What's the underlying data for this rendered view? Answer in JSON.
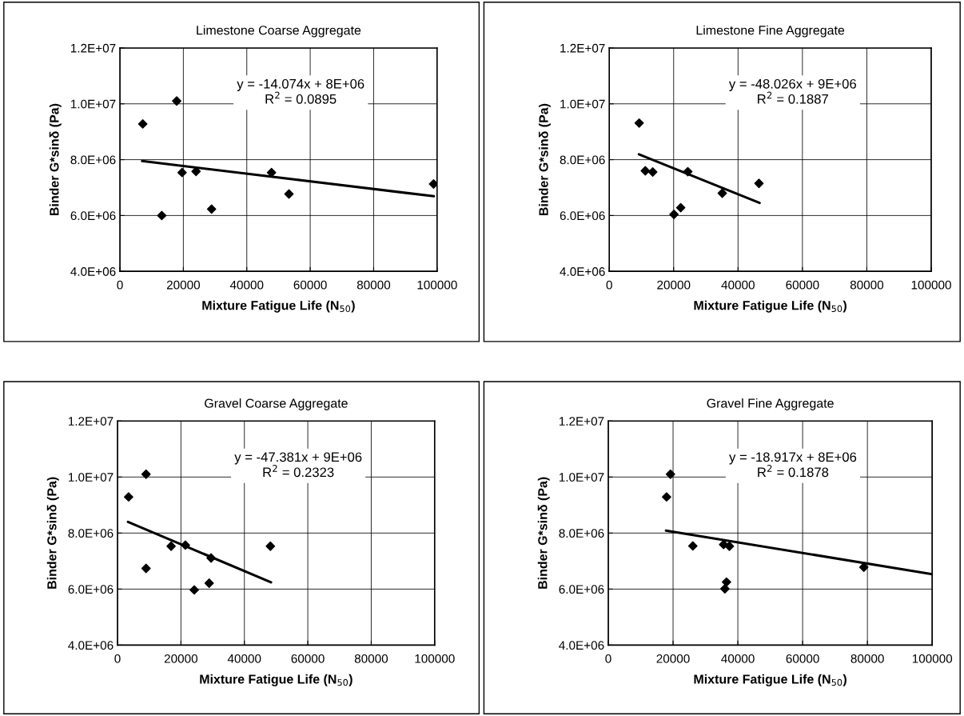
{
  "chart_data": [
    {
      "type": "scatter",
      "title": "Limestone Coarse Aggregate",
      "xlabel": "Mixture Fatigue Life (N$_{50}$)",
      "ylabel": "Binder G*sinδ (Pa)",
      "annotations": [
        "y = -14.074x + 8E+06\nR$^{2}$ = 0.0895"
      ],
      "xlim": [
        0,
        100000
      ],
      "xticks": [
        0,
        20000,
        40000,
        60000,
        80000,
        100000
      ],
      "ylim": [
        4000000,
        12000000
      ],
      "yticks": [
        {
          "value": 4000000,
          "label": "4.0E+06"
        },
        {
          "value": 6000000,
          "label": "6.0E+06"
        },
        {
          "value": 8000000,
          "label": "8.0E+06"
        },
        {
          "value": 10000000,
          "label": "1.0E+07"
        },
        {
          "value": 12000000,
          "label": "1.2E+07"
        }
      ],
      "grid": true,
      "legend": false,
      "series": [
        {
          "type": "scatter",
          "marker": "diamond",
          "color": "#000000",
          "x": [
            7200,
            17900,
            13200,
            19600,
            24000,
            28900,
            47800,
            53300,
            98900
          ],
          "values": [
            9280000,
            10100000,
            6000000,
            7540000,
            7580000,
            6230000,
            7540000,
            6770000,
            7130000
          ]
        },
        {
          "type": "line",
          "marker": "none",
          "color": "#000000",
          "x": [
            7000,
            99000
          ],
          "values": [
            7950000,
            6690000
          ]
        }
      ]
    },
    {
      "type": "scatter",
      "title": "Limestone Fine Aggregate",
      "xlabel": "Mixture Fatigue Life (N$_{50}$)",
      "ylabel": "Binder G*sinδ (Pa)",
      "annotations": [
        "y = -48.026x + 9E+06\nR$^{2}$ = 0.1887"
      ],
      "xlim": [
        0,
        100000
      ],
      "xticks": [
        0,
        20000,
        40000,
        60000,
        80000,
        100000
      ],
      "ylim": [
        4000000,
        12000000
      ],
      "yticks": [
        {
          "value": 4000000,
          "label": "4.0E+06"
        },
        {
          "value": 6000000,
          "label": "6.0E+06"
        },
        {
          "value": 8000000,
          "label": "8.0E+06"
        },
        {
          "value": 10000000,
          "label": "1.0E+07"
        },
        {
          "value": 12000000,
          "label": "1.2E+07"
        }
      ],
      "grid": true,
      "legend": false,
      "series": [
        {
          "type": "scatter",
          "marker": "diamond",
          "color": "#000000",
          "x": [
            9300,
            11200,
            13500,
            20100,
            22200,
            24400,
            35100,
            46500
          ],
          "values": [
            9310000,
            7600000,
            7560000,
            6040000,
            6280000,
            7570000,
            6800000,
            7150000
          ]
        },
        {
          "type": "line",
          "marker": "none",
          "color": "#000000",
          "x": [
            9200,
            46700
          ],
          "values": [
            8190000,
            6450000
          ]
        }
      ]
    },
    {
      "type": "scatter",
      "title": "Gravel Coarse Aggregate",
      "xlabel": "Mixture Fatigue Life (N$_{50}$)",
      "ylabel": "Binder G*sinδ (Pa)",
      "annotations": [
        "y = -47.381x + 9E+06\nR$^{2}$ = 0.2323"
      ],
      "xlim": [
        0,
        100000
      ],
      "xticks": [
        0,
        20000,
        40000,
        60000,
        80000,
        100000
      ],
      "ylim": [
        4000000,
        12000000
      ],
      "yticks": [
        {
          "value": 4000000,
          "label": "4.0E+06"
        },
        {
          "value": 6000000,
          "label": "6.0E+06"
        },
        {
          "value": 8000000,
          "label": "8.0E+06"
        },
        {
          "value": 10000000,
          "label": "1.0E+07"
        },
        {
          "value": 12000000,
          "label": "1.2E+07"
        }
      ],
      "grid": true,
      "legend": false,
      "series": [
        {
          "type": "scatter",
          "marker": "diamond",
          "color": "#000000",
          "x": [
            3500,
            9000,
            9000,
            16900,
            21400,
            24200,
            28900,
            29500,
            48200
          ],
          "values": [
            9290000,
            10100000,
            6740000,
            7530000,
            7570000,
            5970000,
            6210000,
            7110000,
            7530000
          ]
        },
        {
          "type": "line",
          "marker": "none",
          "color": "#000000",
          "x": [
            3300,
            48400
          ],
          "values": [
            8400000,
            6240000
          ]
        }
      ]
    },
    {
      "type": "scatter",
      "title": "Gravel Fine Aggregate",
      "xlabel": "Mixture Fatigue Life (N$_{50}$)",
      "ylabel": "Binder G*sinδ (Pa)",
      "annotations": [
        "y = -18.917x + 8E+06\nR$^{2}$ = 0.1878"
      ],
      "xlim": [
        0,
        100000
      ],
      "xticks": [
        0,
        20000,
        40000,
        60000,
        80000,
        100000
      ],
      "ylim": [
        4000000,
        12000000
      ],
      "yticks": [
        {
          "value": 4000000,
          "label": "4.0E+06"
        },
        {
          "value": 6000000,
          "label": "6.0E+06"
        },
        {
          "value": 8000000,
          "label": "8.0E+06"
        },
        {
          "value": 10000000,
          "label": "1.0E+07"
        },
        {
          "value": 12000000,
          "label": "1.2E+07"
        }
      ],
      "grid": true,
      "legend": false,
      "series": [
        {
          "type": "scatter",
          "marker": "diamond",
          "color": "#000000",
          "x": [
            18000,
            19200,
            26100,
            35600,
            37400,
            36500,
            36000,
            78900
          ],
          "values": [
            9290000,
            10100000,
            7540000,
            7590000,
            7530000,
            6250000,
            6010000,
            6780000
          ]
        },
        {
          "type": "line",
          "marker": "none",
          "color": "#000000",
          "x": [
            17800,
            100000
          ],
          "values": [
            8090000,
            6530000
          ]
        }
      ]
    }
  ]
}
